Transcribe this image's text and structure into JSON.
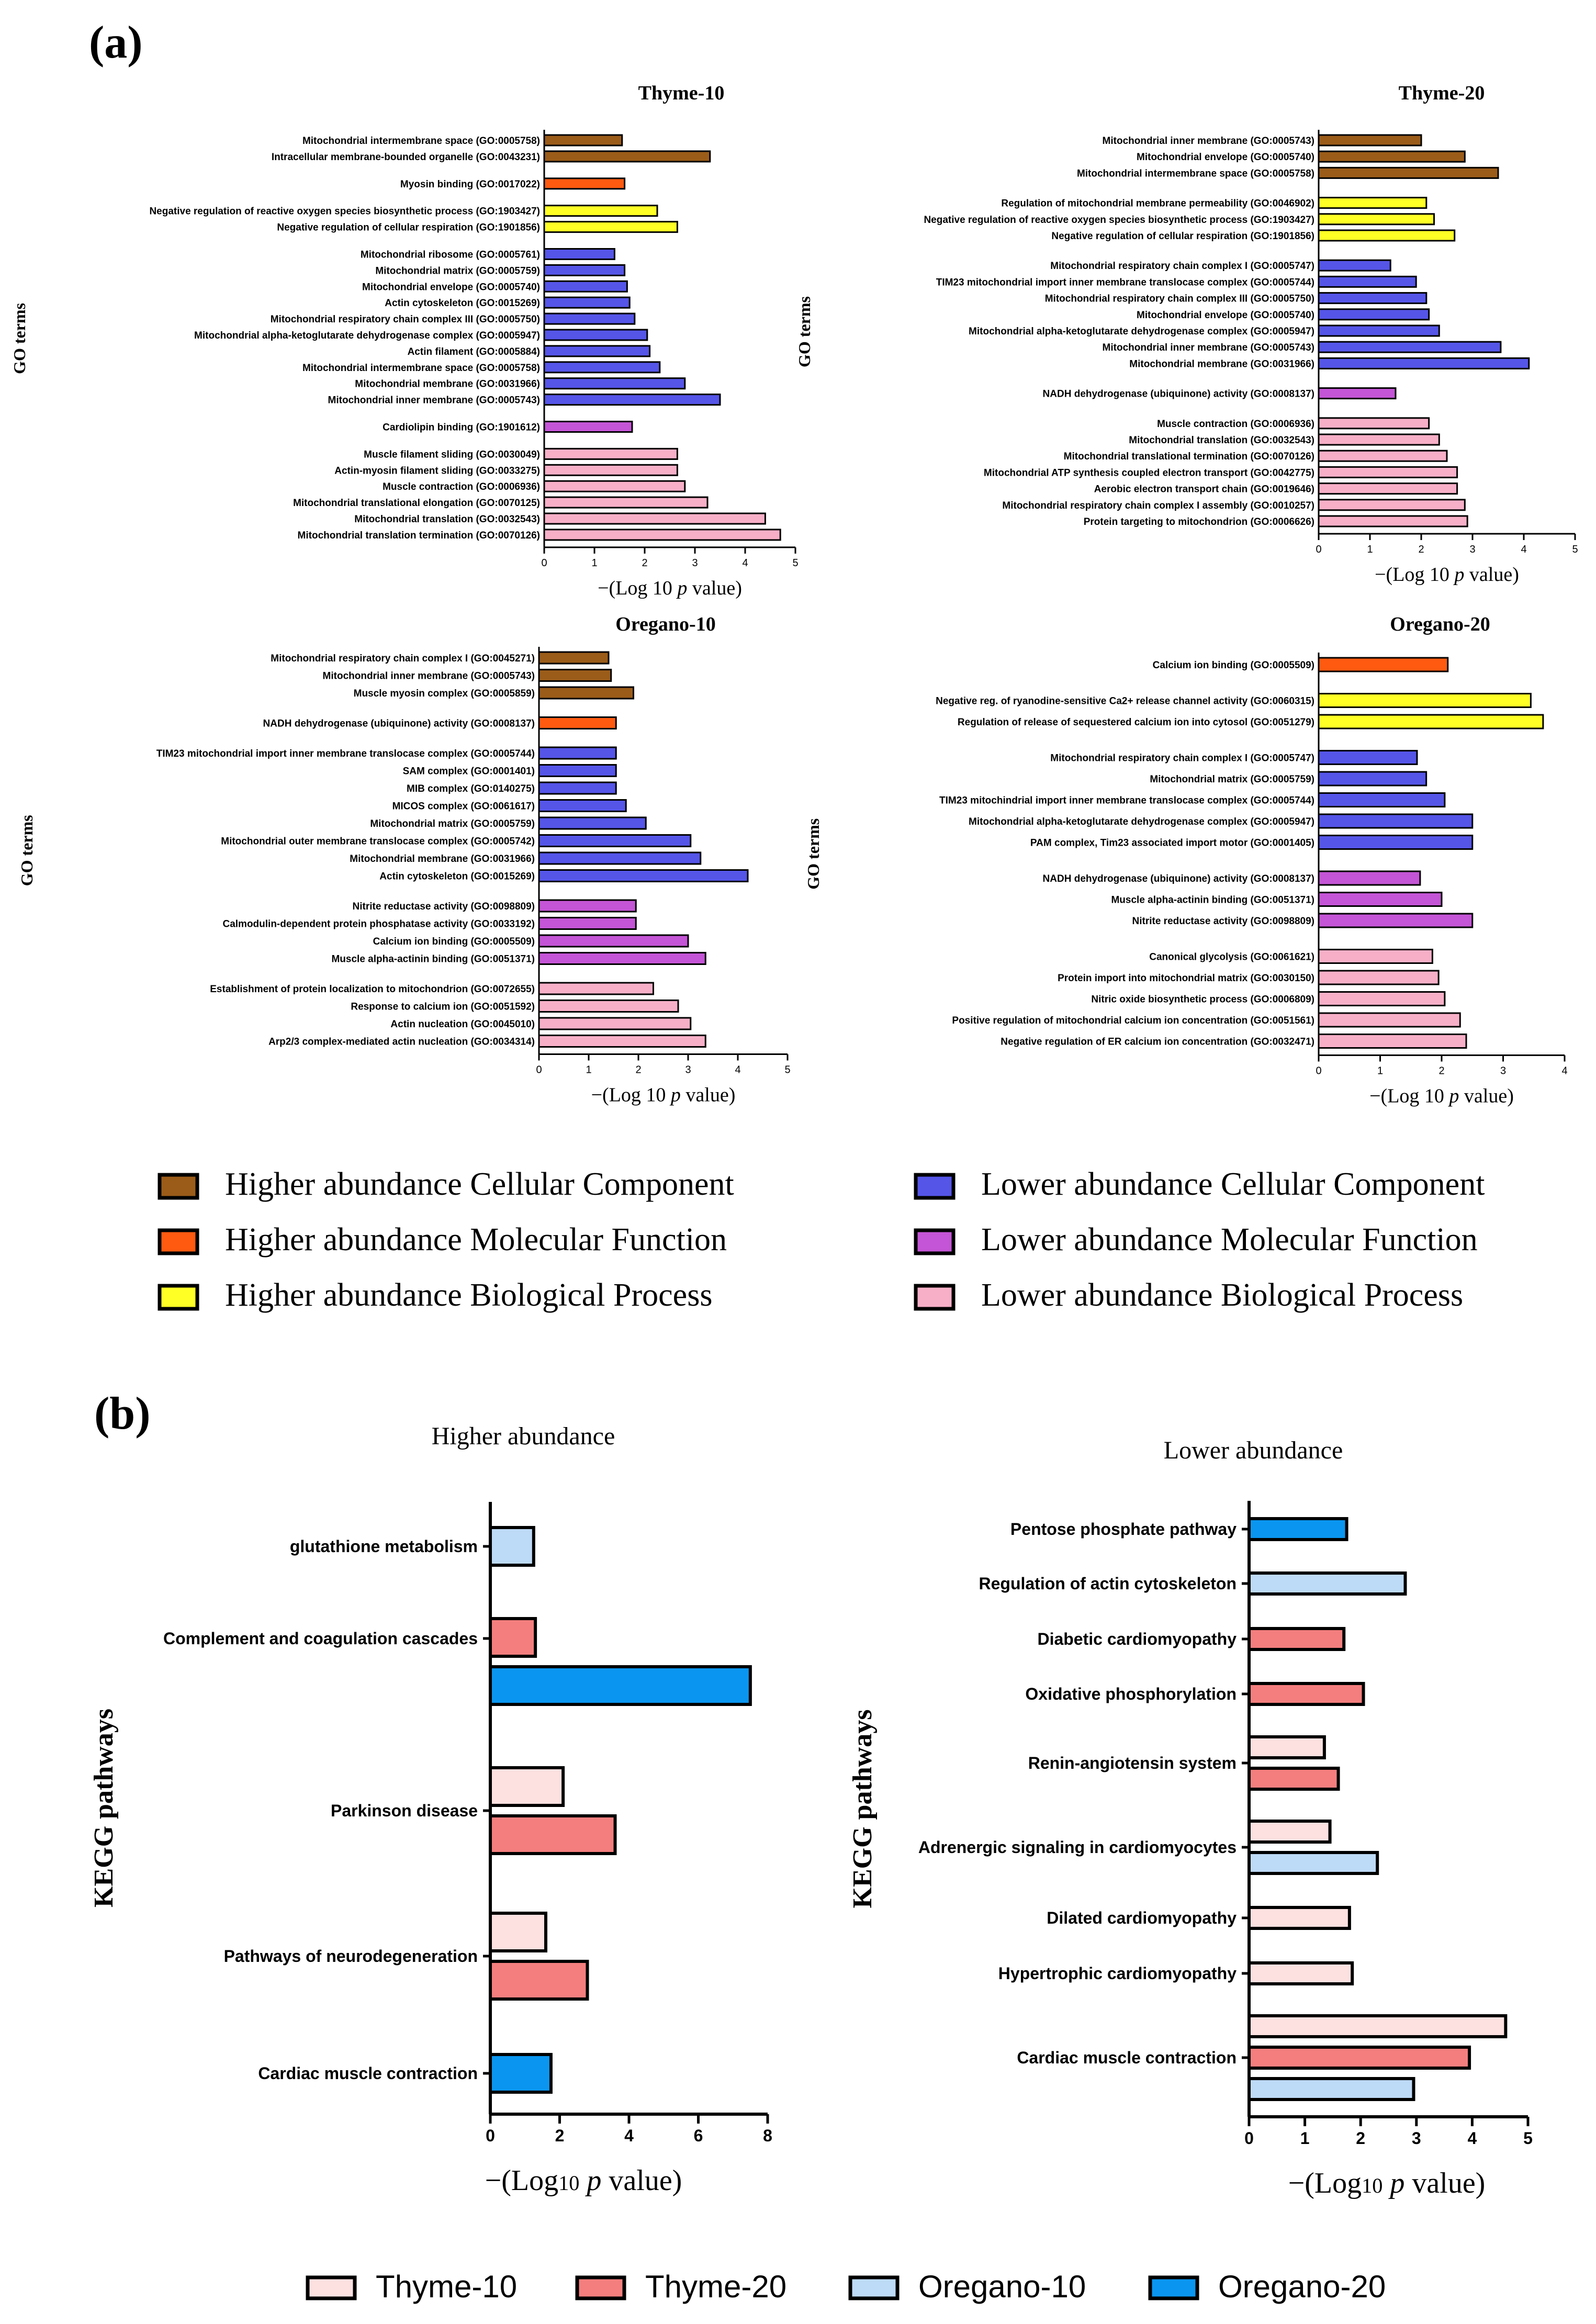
{
  "panel_labels": {
    "a": "(a)",
    "b": "(b)"
  },
  "colors": {
    "hcc": "#9B5C19",
    "hmf": "#FF5A10",
    "hbp": "#FFFF26",
    "lcc": "#5555E8",
    "lmf": "#C455D6",
    "lbp": "#F7AFC7",
    "thyme10": "#FDE0E0",
    "thyme20": "#F47E7E",
    "oregano10": "#BDDAF6",
    "oregano20": "#0A96F0"
  },
  "go_legend": [
    {
      "label": "Higher abundance Cellular Component",
      "color": "#9B5C19"
    },
    {
      "label": "Higher abundance Molecular Function",
      "color": "#FF5A10"
    },
    {
      "label": "Higher abundance Biological Process",
      "color": "#FFFF26"
    },
    {
      "label": "Lower abundance Cellular Component",
      "color": "#5555E8"
    },
    {
      "label": "Lower abundance Molecular Function",
      "color": "#C455D6"
    },
    {
      "label": "Lower abundance Biological Process",
      "color": "#F7AFC7"
    }
  ],
  "kegg_legend": [
    {
      "label": "Thyme-10",
      "color": "#FDE0E0"
    },
    {
      "label": "Thyme-20",
      "color": "#F47E7E"
    },
    {
      "label": "Oregano-10",
      "color": "#BDDAF6"
    },
    {
      "label": "Oregano-20",
      "color": "#0A96F0"
    }
  ],
  "chart_data": [
    {
      "type": "bar",
      "orientation": "horizontal",
      "title": "Thyme-10",
      "ylabel": "GO terms",
      "xlabel": "−(Log 10 p value)",
      "xlim": [
        0,
        5
      ],
      "xticks": [
        0,
        1,
        2,
        3,
        4,
        5
      ],
      "groups": [
        {
          "cat": "hcc",
          "items": [
            {
              "label": "Mitochondrial intermembrane space (GO:0005758)",
              "value": 1.55
            },
            {
              "label": "Intracellular membrane-bounded organelle (GO:0043231)",
              "value": 3.3
            }
          ]
        },
        {
          "cat": "hmf",
          "items": [
            {
              "label": "Myosin binding (GO:0017022)",
              "value": 1.6
            }
          ]
        },
        {
          "cat": "hbp",
          "items": [
            {
              "label": "Negative regulation of reactive oxygen species biosynthetic process (GO:1903427)",
              "value": 2.25
            },
            {
              "label": "Negative regulation of cellular respiration (GO:1901856)",
              "value": 2.65
            }
          ]
        },
        {
          "cat": "lcc",
          "items": [
            {
              "label": "Mitochondrial ribosome (GO:0005761)",
              "value": 1.4
            },
            {
              "label": "Mitochondrial matrix (GO:0005759)",
              "value": 1.6
            },
            {
              "label": "Mitochondrial envelope (GO:0005740)",
              "value": 1.65
            },
            {
              "label": "Actin cytoskeleton (GO:0015269)",
              "value": 1.7
            },
            {
              "label": "Mitochondrial respiratory chain complex III (GO:0005750)",
              "value": 1.8
            },
            {
              "label": "Mitochondrial alpha-ketoglutarate dehydrogenase complex (GO:0005947)",
              "value": 2.05
            },
            {
              "label": "Actin filament (GO:0005884)",
              "value": 2.1
            },
            {
              "label": "Mitochondrial intermembrane space (GO:0005758)",
              "value": 2.3
            },
            {
              "label": "Mitochondrial membrane (GO:0031966)",
              "value": 2.8
            },
            {
              "label": "Mitochondrial inner membrane (GO:0005743)",
              "value": 3.5
            }
          ]
        },
        {
          "cat": "lmf",
          "items": [
            {
              "label": "Cardiolipin binding (GO:1901612)",
              "value": 1.75
            }
          ]
        },
        {
          "cat": "lbp",
          "items": [
            {
              "label": "Muscle filament sliding (GO:0030049)",
              "value": 2.65
            },
            {
              "label": "Actin-myosin filament sliding (GO:0033275)",
              "value": 2.65
            },
            {
              "label": "Muscle contraction (GO:0006936)",
              "value": 2.8
            },
            {
              "label": "Mitochondrial translational elongation (GO:0070125)",
              "value": 3.25
            },
            {
              "label": "Mitochondrial translation (GO:0032543)",
              "value": 4.4
            },
            {
              "label": "Mitochondrial translation termination (GO:0070126)",
              "value": 4.7
            }
          ]
        }
      ]
    },
    {
      "type": "bar",
      "orientation": "horizontal",
      "title": "Thyme-20",
      "ylabel": "GO terms",
      "xlabel": "−(Log 10 p value)",
      "xlim": [
        0,
        5
      ],
      "xticks": [
        0,
        1,
        2,
        3,
        4,
        5
      ],
      "groups": [
        {
          "cat": "hcc",
          "items": [
            {
              "label": "Mitochondrial inner membrane (GO:0005743)",
              "value": 2.0
            },
            {
              "label": "Mitochondrial envelope (GO:0005740)",
              "value": 2.85
            },
            {
              "label": "Mitochondrial intermembrane space (GO:0005758)",
              "value": 3.5
            }
          ]
        },
        {
          "cat": "hbp",
          "items": [
            {
              "label": "Regulation of mitochondrial membrane permeability (GO:0046902)",
              "value": 2.1
            },
            {
              "label": "Negative regulation of reactive oxygen species biosynthetic process (GO:1903427)",
              "value": 2.25
            },
            {
              "label": "Negative regulation of cellular respiration (GO:1901856)",
              "value": 2.65
            }
          ]
        },
        {
          "cat": "lcc",
          "items": [
            {
              "label": "Mitochondrial respiratory chain complex I (GO:0005747)",
              "value": 1.4
            },
            {
              "label": "TIM23 mitochondrial import inner membrane translocase complex (GO:0005744)",
              "value": 1.9
            },
            {
              "label": "Mitochondrial respiratory chain complex III (GO:0005750)",
              "value": 2.1
            },
            {
              "label": "Mitochondrial envelope (GO:0005740)",
              "value": 2.15
            },
            {
              "label": "Mitochondrial alpha-ketoglutarate dehydrogenase complex (GO:0005947)",
              "value": 2.35
            },
            {
              "label": "Mitochondrial inner membrane (GO:0005743)",
              "value": 3.55
            },
            {
              "label": "Mitochondrial membrane (GO:0031966)",
              "value": 4.1
            }
          ]
        },
        {
          "cat": "lmf",
          "items": [
            {
              "label": "NADH dehydrogenase (ubiquinone) activity (GO:0008137)",
              "value": 1.5
            }
          ]
        },
        {
          "cat": "lbp",
          "items": [
            {
              "label": "Muscle contraction (GO:0006936)",
              "value": 2.15
            },
            {
              "label": "Mitochondrial translation (GO:0032543)",
              "value": 2.35
            },
            {
              "label": "Mitochondrial translational termination (GO:0070126)",
              "value": 2.5
            },
            {
              "label": "Mitochondrial ATP synthesis coupled electron transport (GO:0042775)",
              "value": 2.7
            },
            {
              "label": "Aerobic electron transport chain (GO:0019646)",
              "value": 2.7
            },
            {
              "label": "Mitochondrial respiratory chain complex I assembly (GO:0010257)",
              "value": 2.85
            },
            {
              "label": "Protein targeting to mitochondrion (GO:0006626)",
              "value": 2.9
            }
          ]
        }
      ]
    },
    {
      "type": "bar",
      "orientation": "horizontal",
      "title": "Oregano-10",
      "ylabel": "GO terms",
      "xlabel": "−(Log 10 p value)",
      "xlim": [
        0,
        5
      ],
      "xticks": [
        0,
        1,
        2,
        3,
        4,
        5
      ],
      "groups": [
        {
          "cat": "hcc",
          "items": [
            {
              "label": "Mitochondrial respiratory chain complex I (GO:0045271)",
              "value": 1.4
            },
            {
              "label": "Mitochondrial inner membrane (GO:0005743)",
              "value": 1.45
            },
            {
              "label": "Muscle myosin complex (GO:0005859)",
              "value": 1.9
            }
          ]
        },
        {
          "cat": "hmf",
          "items": [
            {
              "label": "NADH dehydrogenase (ubiquinone) activity (GO:0008137)",
              "value": 1.55
            }
          ]
        },
        {
          "cat": "lcc",
          "items": [
            {
              "label": "TIM23 mitochondrial import inner membrane translocase complex (GO:0005744)",
              "value": 1.55
            },
            {
              "label": "SAM complex (GO:0001401)",
              "value": 1.55
            },
            {
              "label": "MIB complex (GO:0140275)",
              "value": 1.55
            },
            {
              "label": "MICOS complex (GO:0061617)",
              "value": 1.75
            },
            {
              "label": "Mitochondrial matrix (GO:0005759)",
              "value": 2.15
            },
            {
              "label": "Mitochondrial outer membrane translocase complex (GO:0005742)",
              "value": 3.05
            },
            {
              "label": "Mitochondrial membrane (GO:0031966)",
              "value": 3.25
            },
            {
              "label": "Actin cytoskeleton (GO:0015269)",
              "value": 4.2
            }
          ]
        },
        {
          "cat": "lmf",
          "items": [
            {
              "label": "Nitrite reductase activity (GO:0098809)",
              "value": 1.95
            },
            {
              "label": "Calmodulin-dependent protein phosphatase activity (GO:0033192)",
              "value": 1.95
            },
            {
              "label": "Calcium ion binding (GO:0005509)",
              "value": 3.0
            },
            {
              "label": "Muscle alpha-actinin binding (GO:0051371)",
              "value": 3.35
            }
          ]
        },
        {
          "cat": "lbp",
          "items": [
            {
              "label": "Establishment of protein localization to mitochondrion (GO:0072655)",
              "value": 2.3
            },
            {
              "label": "Response to calcium ion (GO:0051592)",
              "value": 2.8
            },
            {
              "label": "Actin nucleation (GO:0045010)",
              "value": 3.05
            },
            {
              "label": "Arp2/3 complex-mediated actin nucleation (GO:0034314)",
              "value": 3.35
            }
          ]
        }
      ]
    },
    {
      "type": "bar",
      "orientation": "horizontal",
      "title": "Oregano-20",
      "ylabel": "GO terms",
      "xlabel": "−(Log 10 p value)",
      "xlim": [
        0,
        4
      ],
      "xticks": [
        0,
        1,
        2,
        3,
        4
      ],
      "groups": [
        {
          "cat": "hmf",
          "items": [
            {
              "label": "Calcium ion binding (GO:0005509)",
              "value": 2.1
            }
          ]
        },
        {
          "cat": "hbp",
          "items": [
            {
              "label": "Negative reg. of ryanodine-sensitive Ca2+ release channel activity (GO:0060315)",
              "value": 3.45
            },
            {
              "label": "Regulation of release of sequestered calcium ion into cytosol (GO:0051279)",
              "value": 3.65
            }
          ]
        },
        {
          "cat": "lcc",
          "items": [
            {
              "label": "Mitochondrial respiratory chain complex I (GO:0005747)",
              "value": 1.6
            },
            {
              "label": "Mitochondrial matrix (GO:0005759)",
              "value": 1.75
            },
            {
              "label": "TIM23 mitochindrial import inner membrane translocase complex (GO:0005744)",
              "value": 2.05
            },
            {
              "label": "Mitochondrial alpha-ketoglutarate dehydrogenase complex (GO:0005947)",
              "value": 2.5
            },
            {
              "label": "PAM complex, Tim23 associated import motor (GO:0001405)",
              "value": 2.5
            }
          ]
        },
        {
          "cat": "lmf",
          "items": [
            {
              "label": "NADH dehydrogenase (ubiquinone) activity (GO:0008137)",
              "value": 1.65
            },
            {
              "label": "Muscle alpha-actinin binding (GO:0051371)",
              "value": 2.0
            },
            {
              "label": "Nitrite reductase activity (GO:0098809)",
              "value": 2.5
            }
          ]
        },
        {
          "cat": "lbp",
          "items": [
            {
              "label": "Canonical glycolysis (GO:0061621)",
              "value": 1.85
            },
            {
              "label": "Protein import into mitochondrial matrix (GO:0030150)",
              "value": 1.95
            },
            {
              "label": "Nitric oxide biosynthetic process (GO:0006809)",
              "value": 2.05
            },
            {
              "label": "Positive regulation of mitochondrial calcium ion concentration (GO:0051561)",
              "value": 2.3
            },
            {
              "label": "Negative regulation of ER calcium ion concentration (GO:0032471)",
              "value": 2.4
            }
          ]
        }
      ]
    },
    {
      "type": "bar",
      "orientation": "horizontal",
      "title": "Higher abundance",
      "ylabel": "KEGG pathways",
      "xlabel": "−(Log10 p value)",
      "xlim": [
        0,
        8
      ],
      "xticks": [
        0,
        2,
        4,
        6,
        8
      ],
      "pathways": [
        {
          "label": "glutathione metabolism",
          "bars": [
            {
              "series": "oregano10",
              "value": 1.25
            }
          ]
        },
        {
          "label": "Complement and coagulation cascades",
          "bars": [
            {
              "series": "thyme20",
              "value": 1.3
            },
            {
              "series": "oregano20",
              "value": 7.5
            }
          ]
        },
        {
          "label": "Parkinson disease",
          "bars": [
            {
              "series": "thyme10",
              "value": 2.1
            },
            {
              "series": "thyme20",
              "value": 3.6
            }
          ]
        },
        {
          "label": "Pathways of neurodegeneration",
          "bars": [
            {
              "series": "thyme10",
              "value": 1.6
            },
            {
              "series": "thyme20",
              "value": 2.8
            }
          ]
        },
        {
          "label": "Cardiac muscle contraction",
          "bars": [
            {
              "series": "oregano20",
              "value": 1.75
            }
          ]
        }
      ]
    },
    {
      "type": "bar",
      "orientation": "horizontal",
      "title": "Lower abundance",
      "ylabel": "KEGG pathways",
      "xlabel": "−(Log10 p value)",
      "xlim": [
        0,
        5
      ],
      "xticks": [
        0,
        1,
        2,
        3,
        4,
        5
      ],
      "pathways": [
        {
          "label": "Pentose phosphate pathway",
          "bars": [
            {
              "series": "oregano20",
              "value": 1.75
            }
          ]
        },
        {
          "label": "Regulation of actin cytoskeleton",
          "bars": [
            {
              "series": "oregano10",
              "value": 2.8
            }
          ]
        },
        {
          "label": "Diabetic cardiomyopathy",
          "bars": [
            {
              "series": "thyme20",
              "value": 1.7
            }
          ]
        },
        {
          "label": "Oxidative phosphorylation",
          "bars": [
            {
              "series": "thyme20",
              "value": 2.05
            }
          ]
        },
        {
          "label": "Renin-angiotensin system",
          "bars": [
            {
              "series": "thyme10",
              "value": 1.35
            },
            {
              "series": "thyme20",
              "value": 1.6
            }
          ]
        },
        {
          "label": "Adrenergic signaling in cardiomyocytes",
          "bars": [
            {
              "series": "thyme10",
              "value": 1.45
            },
            {
              "series": "oregano10",
              "value": 2.3
            }
          ]
        },
        {
          "label": "Dilated cardiomyopathy",
          "bars": [
            {
              "series": "thyme10",
              "value": 1.8
            }
          ]
        },
        {
          "label": "Hypertrophic cardiomyopathy",
          "bars": [
            {
              "series": "thyme10",
              "value": 1.85
            }
          ]
        },
        {
          "label": "Cardiac muscle contraction",
          "bars": [
            {
              "series": "thyme10",
              "value": 4.6
            },
            {
              "series": "thyme20",
              "value": 3.95
            },
            {
              "series": "oregano10",
              "value": 2.95
            }
          ]
        }
      ]
    }
  ]
}
